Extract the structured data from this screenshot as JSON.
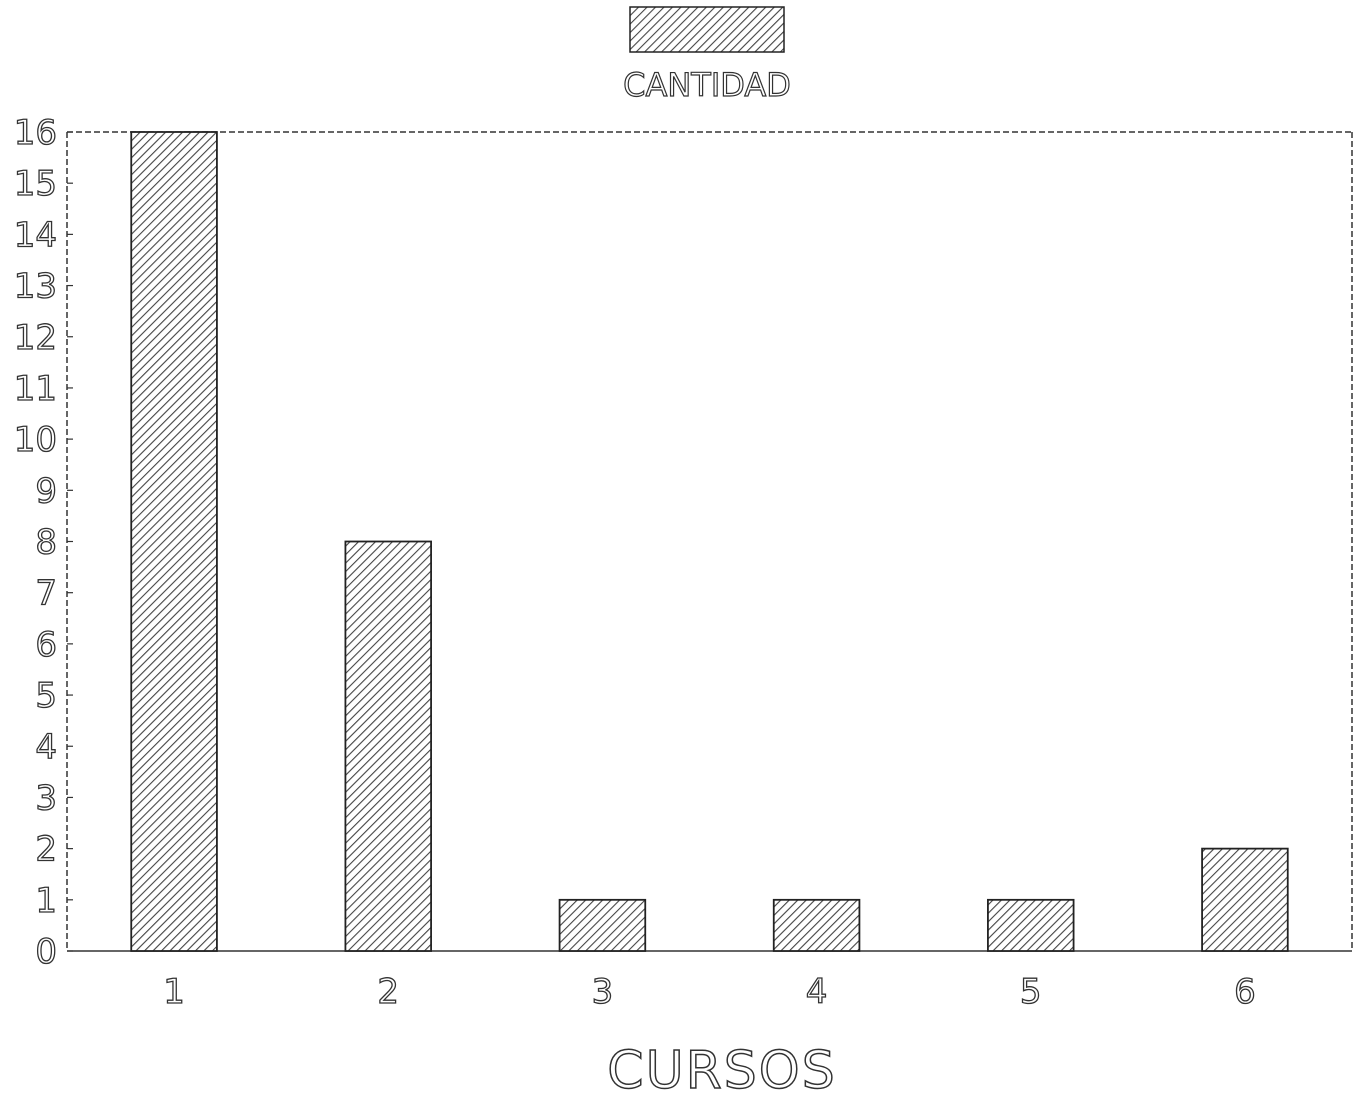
{
  "chart_data": {
    "type": "bar",
    "categories": [
      "1",
      "2",
      "3",
      "4",
      "5",
      "6"
    ],
    "series": [
      {
        "name": "CANTIDAD",
        "values": [
          16,
          8,
          1,
          1,
          1,
          2
        ]
      }
    ],
    "xlabel": "CURSOS",
    "ylabel": "",
    "ylim": [
      0,
      16
    ],
    "yticks": [
      "0",
      "1",
      "2",
      "3",
      "4",
      "5",
      "6",
      "7",
      "8",
      "9",
      "10",
      "11",
      "12",
      "13",
      "14",
      "15",
      "16"
    ],
    "legend": {
      "position": "top-center",
      "label": "CANTIDAD"
    },
    "grid": false,
    "bar_fill": "hatched",
    "colors": {
      "bar_stroke": "#222222",
      "hatch": "#444444",
      "axis": "#333333"
    }
  }
}
